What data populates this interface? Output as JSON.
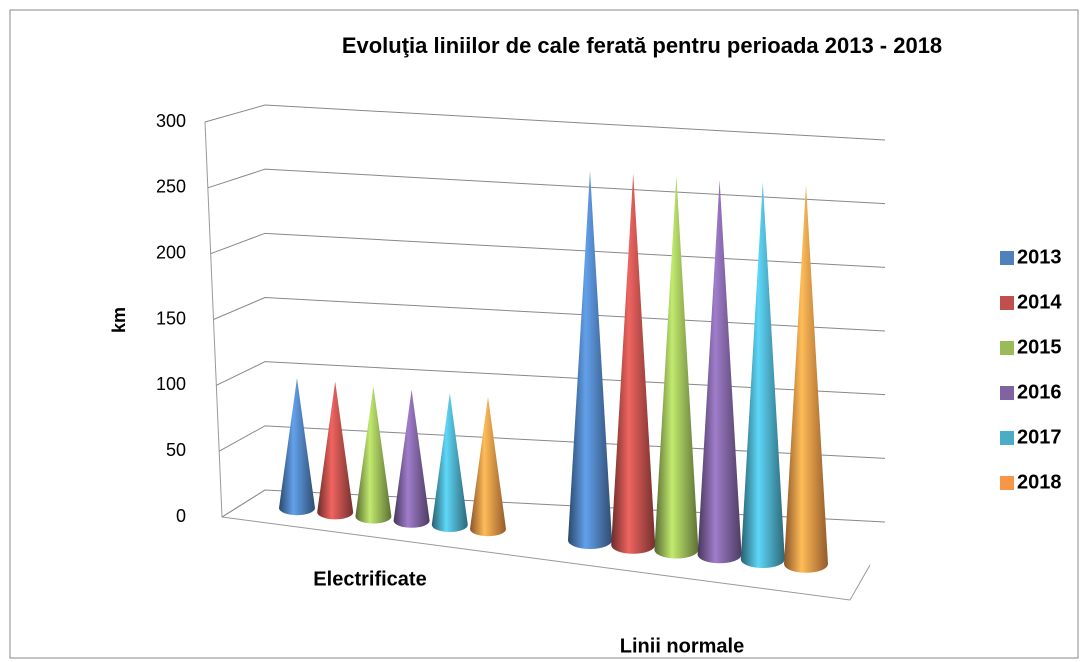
{
  "chart_data": {
    "type": "cone3d",
    "title": "Evoluţia liniilor de cale ferată pentru perioada 2013 - 2018",
    "y_label": "km",
    "categories": [
      "Electrificate",
      "Linii normale"
    ],
    "series": [
      {
        "name": "2013",
        "color": "#4f81bd",
        "values": [
          97,
          264
        ]
      },
      {
        "name": "2014",
        "color": "#c0504d",
        "values": [
          97,
          264
        ]
      },
      {
        "name": "2015",
        "color": "#9bbb59",
        "values": [
          96,
          264
        ]
      },
      {
        "name": "2016",
        "color": "#8064a2",
        "values": [
          96,
          263
        ]
      },
      {
        "name": "2017",
        "color": "#4bacc6",
        "values": [
          96,
          263
        ]
      },
      {
        "name": "2018",
        "color": "#f79646",
        "values": [
          96,
          263
        ]
      }
    ],
    "ylim": [
      0,
      300
    ],
    "yticks": [
      0,
      50,
      100,
      150,
      200,
      250,
      300
    ],
    "grid": true,
    "legend": "right"
  }
}
